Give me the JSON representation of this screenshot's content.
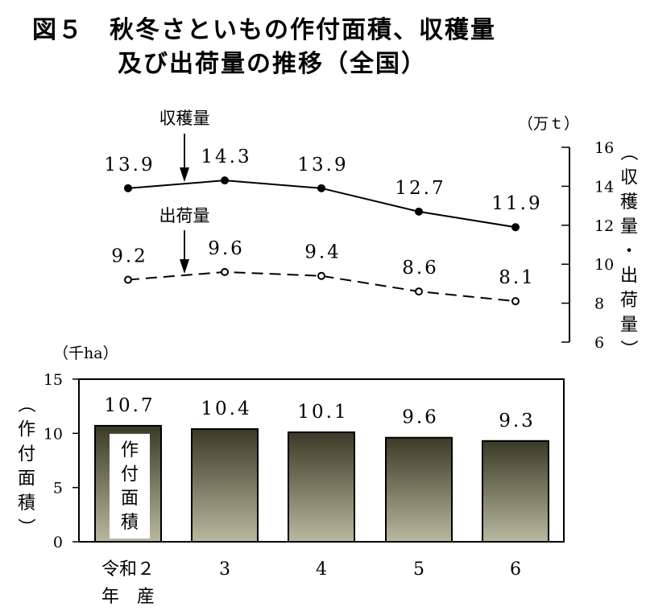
{
  "title_line1": "図５　秋冬さといもの作付面積、収穫量",
  "title_line2": "及び出荷量の推移（全国）",
  "chart_data": [
    {
      "type": "line",
      "categories": [
        "令和２年産",
        "3",
        "4",
        "5",
        "6"
      ],
      "series": [
        {
          "name": "収穫量",
          "values": [
            13.9,
            14.3,
            13.9,
            12.7,
            11.9
          ],
          "marker": "filled",
          "line": "solid"
        },
        {
          "name": "出荷量",
          "values": [
            9.2,
            9.6,
            9.4,
            8.6,
            8.1
          ],
          "marker": "open",
          "line": "dashed"
        }
      ],
      "unit": "（万ｔ）",
      "ylabel": "（収穫量・出荷量）",
      "ylim": [
        6,
        16
      ],
      "yticks": [
        "6",
        "8",
        "10",
        "12",
        "14",
        "16"
      ],
      "axis_side": "right"
    },
    {
      "type": "bar",
      "categories": [
        "令和２年産",
        "3",
        "4",
        "5",
        "6"
      ],
      "values": [
        10.7,
        10.4,
        10.1,
        9.6,
        9.3
      ],
      "value_labels": [
        "10.7",
        "10.4",
        "10.1",
        "9.6",
        "9.3"
      ],
      "unit": "（千ha）",
      "ylabel": "（作付面積）",
      "bar_label": "作付面積",
      "ylim": [
        0,
        15
      ],
      "yticks": [
        "0",
        "5",
        "10",
        "15"
      ],
      "bar_color_top": "#3b3a26",
      "bar_color_bottom": "#b9b9a0"
    }
  ],
  "line_labels": [
    [
      "13.9",
      "14.3",
      "13.9",
      "12.7",
      "11.9"
    ],
    [
      "9.2",
      "9.6",
      "9.4",
      "8.6",
      "8.1"
    ]
  ],
  "x_labels": {
    "first_line1": "令和２",
    "first_line2": "年　産",
    "rest": [
      "3",
      "4",
      "5",
      "6"
    ]
  },
  "annotations": {
    "harvest": "収穫量",
    "shipment": "出荷量"
  }
}
